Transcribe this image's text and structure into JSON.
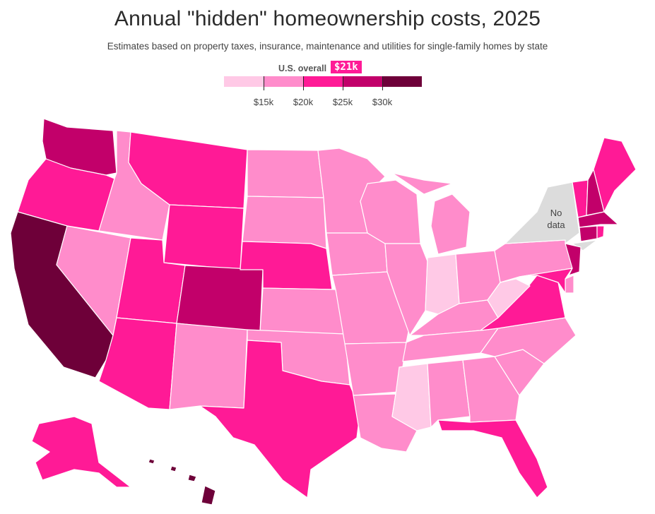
{
  "title": "Annual \"hidden\" homeownership costs, 2025",
  "subtitle": "Estimates based on property taxes, insurance, maintenance and utilities for single-family homes by state",
  "legend": {
    "overall_label": "U.S. overall",
    "overall_value": "$21k",
    "colors": [
      "#ffc9e6",
      "#ff8ccb",
      "#ff1a96",
      "#c2006a",
      "#6e0039"
    ],
    "ticks": [
      "$15k",
      "$20k",
      "$25k",
      "$30k"
    ]
  },
  "no_data_label_1": "No",
  "no_data_label_2": "data",
  "states": [
    {
      "code": "WA",
      "bin": 3
    },
    {
      "code": "OR",
      "bin": 2
    },
    {
      "code": "CA",
      "bin": 4
    },
    {
      "code": "ID",
      "bin": 1
    },
    {
      "code": "NV",
      "bin": 1
    },
    {
      "code": "MT",
      "bin": 2
    },
    {
      "code": "WY",
      "bin": 2
    },
    {
      "code": "UT",
      "bin": 2
    },
    {
      "code": "AZ",
      "bin": 2
    },
    {
      "code": "CO",
      "bin": 3
    },
    {
      "code": "NM",
      "bin": 1
    },
    {
      "code": "ND",
      "bin": 1
    },
    {
      "code": "SD",
      "bin": 1
    },
    {
      "code": "NE",
      "bin": 2
    },
    {
      "code": "KS",
      "bin": 1
    },
    {
      "code": "OK",
      "bin": 1
    },
    {
      "code": "TX",
      "bin": 2
    },
    {
      "code": "MN",
      "bin": 1
    },
    {
      "code": "IA",
      "bin": 1
    },
    {
      "code": "MO",
      "bin": 1
    },
    {
      "code": "AR",
      "bin": 1
    },
    {
      "code": "LA",
      "bin": 1
    },
    {
      "code": "WI",
      "bin": 1
    },
    {
      "code": "IL",
      "bin": 1
    },
    {
      "code": "MI",
      "bin": 1
    },
    {
      "code": "IN",
      "bin": 0
    },
    {
      "code": "OH",
      "bin": 1
    },
    {
      "code": "KY",
      "bin": 1
    },
    {
      "code": "TN",
      "bin": 1
    },
    {
      "code": "MS",
      "bin": 0
    },
    {
      "code": "AL",
      "bin": 1
    },
    {
      "code": "GA",
      "bin": 1
    },
    {
      "code": "FL",
      "bin": 2
    },
    {
      "code": "SC",
      "bin": 1
    },
    {
      "code": "NC",
      "bin": 1
    },
    {
      "code": "VA",
      "bin": 2
    },
    {
      "code": "WV",
      "bin": 0
    },
    {
      "code": "PA",
      "bin": 1
    },
    {
      "code": "NY",
      "bin": null
    },
    {
      "code": "NJ",
      "bin": 3
    },
    {
      "code": "DE",
      "bin": 1
    },
    {
      "code": "MD",
      "bin": 2
    },
    {
      "code": "VT",
      "bin": 2
    },
    {
      "code": "NH",
      "bin": 3
    },
    {
      "code": "ME",
      "bin": 2
    },
    {
      "code": "MA",
      "bin": 3
    },
    {
      "code": "CT",
      "bin": 3
    },
    {
      "code": "RI",
      "bin": 2
    },
    {
      "code": "AK",
      "bin": 2
    },
    {
      "code": "HI",
      "bin": 4
    }
  ],
  "colors": {
    "no_data": "#dcdcdc"
  }
}
